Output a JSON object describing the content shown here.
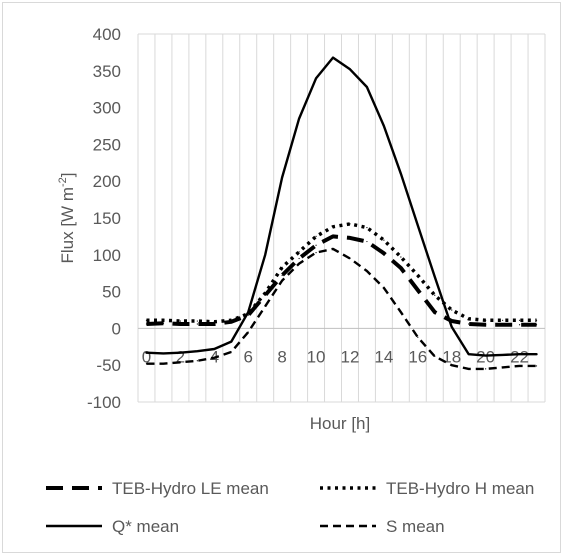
{
  "chart_data": {
    "type": "line",
    "ylabel": "Flux [W m-2]",
    "ylabel_parts": [
      "Flux [W m",
      "-2",
      "]"
    ],
    "xlabel": "Hour [h]",
    "ylim": [
      -100,
      400
    ],
    "yticks": [
      400,
      350,
      300,
      250,
      200,
      150,
      100,
      50,
      0,
      -50,
      -100
    ],
    "xlim": [
      0,
      23
    ],
    "xticks": [
      0,
      2,
      4,
      6,
      8,
      10,
      12,
      14,
      16,
      18,
      20,
      22
    ],
    "x": [
      0,
      1,
      2,
      3,
      4,
      5,
      6,
      7,
      8,
      9,
      10,
      11,
      12,
      13,
      14,
      15,
      16,
      17,
      18,
      19,
      20,
      21,
      22,
      23
    ],
    "grid": "vertical",
    "legend_position": "bottom",
    "series": [
      {
        "name": "TEB-Hydro LE mean",
        "style": "long-dash",
        "values": [
          6,
          7,
          6,
          6,
          6,
          9,
          18,
          45,
          72,
          95,
          113,
          125,
          123,
          118,
          102,
          82,
          52,
          22,
          10,
          6,
          5,
          5,
          5,
          5
        ]
      },
      {
        "name": "TEB-Hydro H mean",
        "style": "dotted",
        "values": [
          11,
          11,
          10,
          10,
          9,
          11,
          20,
          48,
          83,
          104,
          125,
          138,
          142,
          137,
          120,
          97,
          72,
          45,
          25,
          13,
          11,
          11,
          11,
          11
        ]
      },
      {
        "name": "Q* mean",
        "style": "solid",
        "values": [
          -33,
          -34,
          -33,
          -31,
          -28,
          -18,
          22,
          100,
          205,
          285,
          340,
          368,
          352,
          328,
          275,
          210,
          140,
          70,
          2,
          -35,
          -37,
          -36,
          -35,
          -35
        ]
      },
      {
        "name": "S mean",
        "style": "short-dash",
        "values": [
          -48,
          -48,
          -46,
          -44,
          -40,
          -32,
          -5,
          30,
          65,
          88,
          103,
          108,
          95,
          78,
          55,
          22,
          -12,
          -38,
          -50,
          -55,
          -55,
          -53,
          -51,
          -51
        ]
      }
    ]
  }
}
